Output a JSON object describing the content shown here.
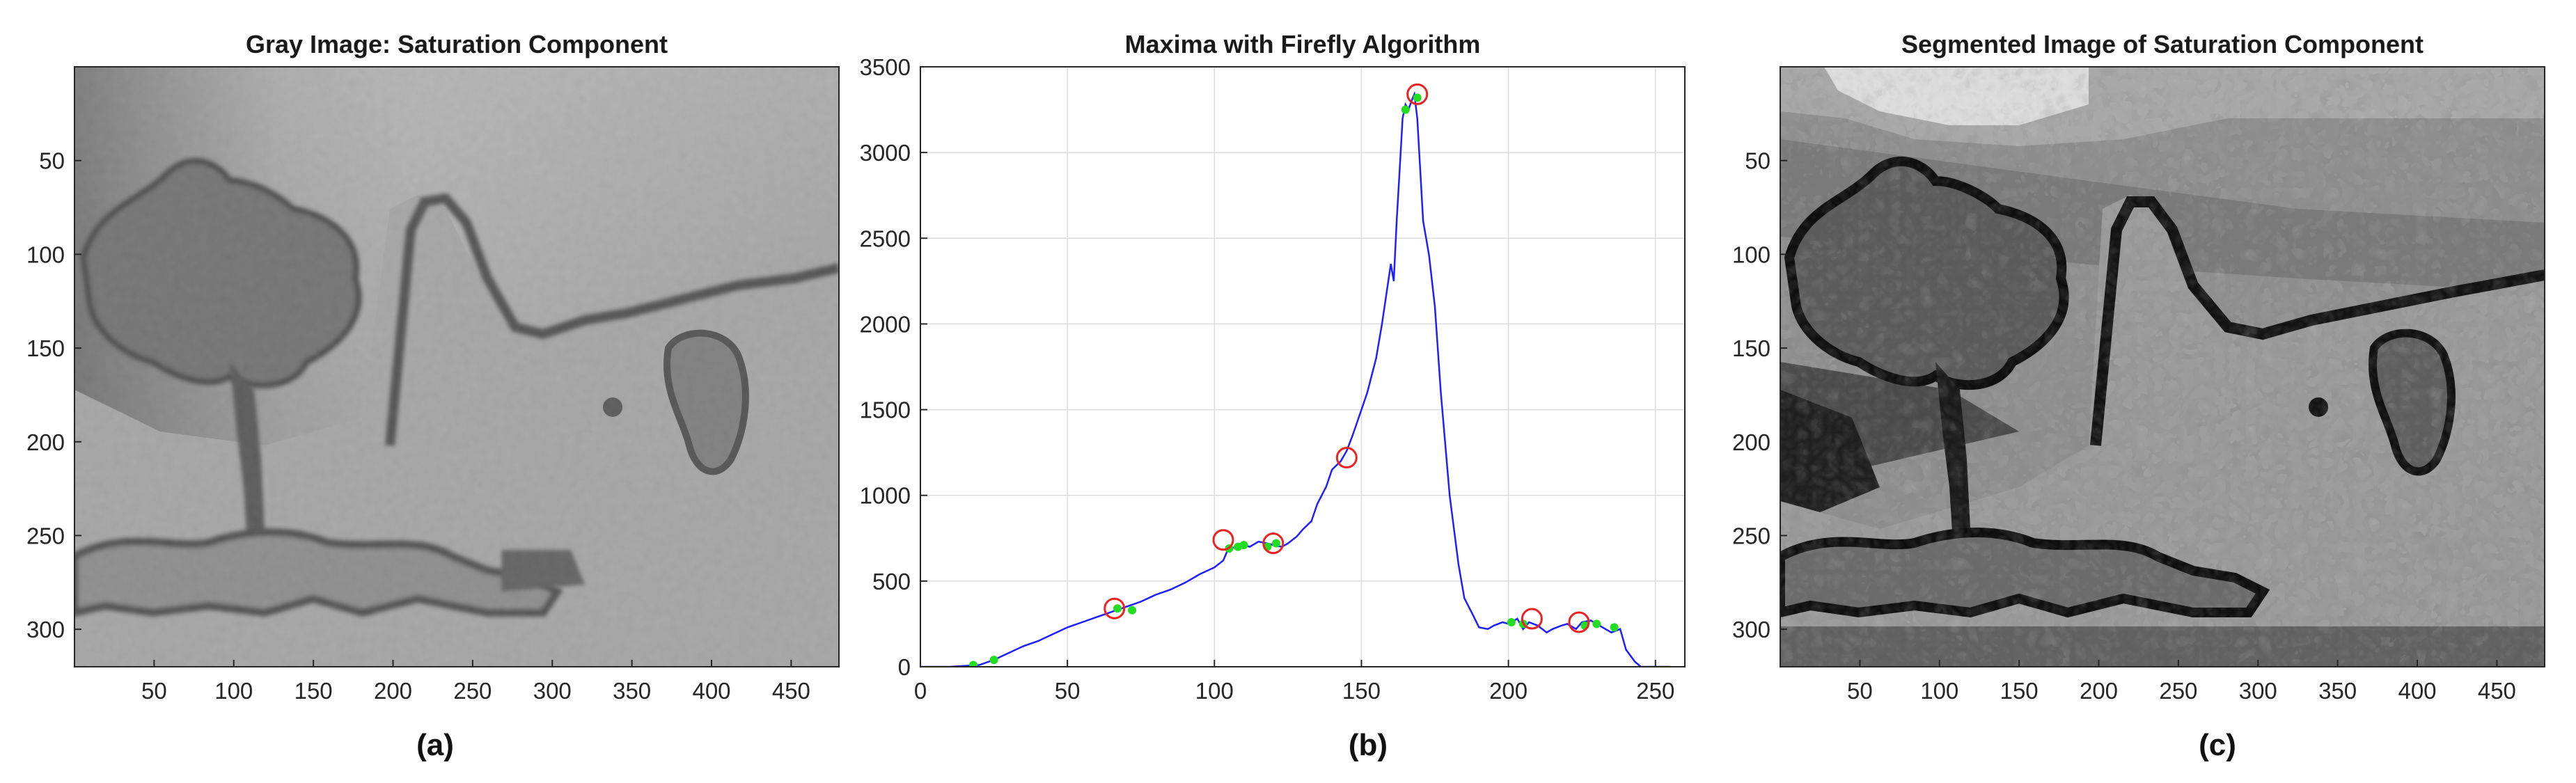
{
  "chart_data": [
    {
      "type": "image",
      "panel": "(a)",
      "title": "Gray Image: Saturation Component",
      "xticks": [
        50,
        100,
        150,
        200,
        250,
        300,
        350,
        400,
        450
      ],
      "yticks": [
        50,
        100,
        150,
        200,
        250,
        300
      ],
      "xlim": [
        0,
        480
      ],
      "ylim": [
        0,
        320
      ],
      "y_reversed": true,
      "caption": "(a)"
    },
    {
      "type": "line",
      "panel": "(b)",
      "title": "Maxima with Firefly Algorithm",
      "xlabel": "",
      "ylabel": "",
      "xlim": [
        0,
        260
      ],
      "ylim": [
        0,
        3500
      ],
      "xticks": [
        0,
        50,
        100,
        150,
        200,
        250
      ],
      "yticks": [
        0,
        500,
        1000,
        1500,
        2000,
        2500,
        3000,
        3500
      ],
      "grid": true,
      "series": [
        {
          "color": "#1f1fff",
          "x": [
            0,
            10,
            15,
            20,
            25,
            30,
            35,
            40,
            45,
            50,
            55,
            60,
            65,
            70,
            75,
            80,
            85,
            90,
            95,
            100,
            103,
            105,
            108,
            110,
            112,
            115,
            118,
            120,
            123,
            125,
            128,
            130,
            133,
            135,
            138,
            140,
            143,
            145,
            147,
            150,
            152,
            155,
            157,
            160,
            161,
            162,
            163,
            164,
            165,
            166,
            167,
            168,
            169,
            170,
            171,
            172,
            173,
            175,
            177,
            180,
            183,
            185,
            188,
            190,
            193,
            195,
            198,
            200,
            203,
            205,
            207,
            210,
            213,
            215,
            218,
            220,
            223,
            225,
            228,
            230,
            233,
            235,
            238,
            240,
            243,
            245,
            250,
            255
          ],
          "y": [
            0,
            0,
            5,
            10,
            40,
            80,
            120,
            150,
            190,
            230,
            260,
            290,
            320,
            350,
            380,
            420,
            450,
            490,
            540,
            580,
            620,
            700,
            690,
            710,
            700,
            730,
            720,
            710,
            700,
            720,
            760,
            800,
            850,
            950,
            1050,
            1150,
            1200,
            1260,
            1350,
            1500,
            1600,
            1800,
            2000,
            2350,
            2250,
            2600,
            2900,
            3200,
            3280,
            3250,
            3300,
            3340,
            3200,
            2900,
            2600,
            2500,
            2400,
            2100,
            1600,
            1000,
            600,
            400,
            300,
            230,
            220,
            240,
            260,
            250,
            280,
            220,
            260,
            240,
            200,
            220,
            240,
            250,
            220,
            260,
            270,
            250,
            220,
            200,
            220,
            100,
            30,
            0,
            0,
            0
          ]
        }
      ],
      "maxima_red_circles": [
        {
          "x": 66,
          "y": 340
        },
        {
          "x": 103,
          "y": 740
        },
        {
          "x": 120,
          "y": 720
        },
        {
          "x": 145,
          "y": 1220
        },
        {
          "x": 169,
          "y": 3340
        },
        {
          "x": 208,
          "y": 280
        },
        {
          "x": 224,
          "y": 260
        }
      ],
      "fireflies_green": [
        {
          "x": 18,
          "y": 10
        },
        {
          "x": 25,
          "y": 40
        },
        {
          "x": 67,
          "y": 340
        },
        {
          "x": 72,
          "y": 330
        },
        {
          "x": 105,
          "y": 690
        },
        {
          "x": 108,
          "y": 700
        },
        {
          "x": 110,
          "y": 710
        },
        {
          "x": 118,
          "y": 700
        },
        {
          "x": 121,
          "y": 720
        },
        {
          "x": 165,
          "y": 3250
        },
        {
          "x": 169,
          "y": 3320
        },
        {
          "x": 201,
          "y": 260
        },
        {
          "x": 205,
          "y": 250
        },
        {
          "x": 226,
          "y": 240
        },
        {
          "x": 230,
          "y": 250
        },
        {
          "x": 236,
          "y": 230
        }
      ],
      "caption": "(b)"
    },
    {
      "type": "image",
      "panel": "(c)",
      "title": "Segmented Image of Saturation Component",
      "xticks": [
        50,
        100,
        150,
        200,
        250,
        300,
        350,
        400,
        450
      ],
      "yticks": [
        50,
        100,
        150,
        200,
        250,
        300
      ],
      "xlim": [
        0,
        480
      ],
      "ylim": [
        0,
        320
      ],
      "y_reversed": true,
      "caption": "(c)"
    }
  ]
}
